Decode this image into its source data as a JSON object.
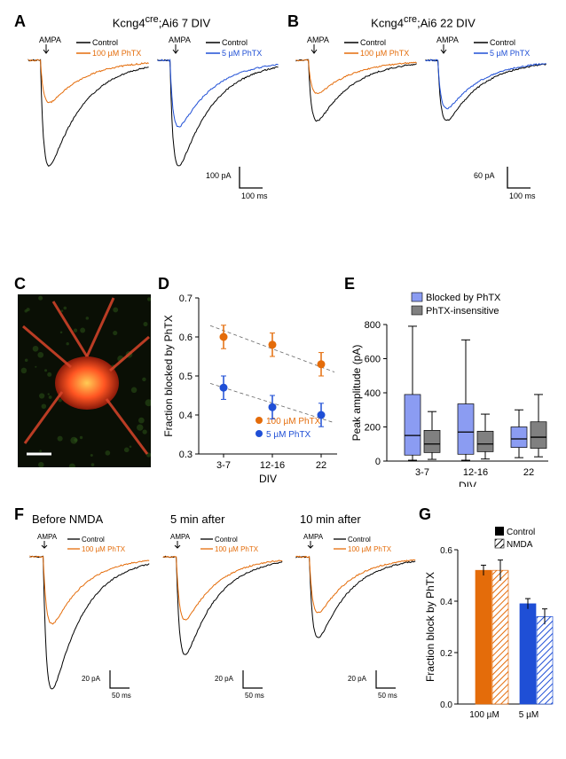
{
  "panels": {
    "A": {
      "label": "A",
      "title_html": "Kcng4<sup>cre</sup>;Ai6 7 DIV"
    },
    "B": {
      "label": "B",
      "title_html": "Kcng4<sup>cre</sup>;Ai6 22 DIV"
    },
    "C": {
      "label": "C"
    },
    "D": {
      "label": "D"
    },
    "E": {
      "label": "E"
    },
    "F": {
      "label": "F"
    },
    "G": {
      "label": "G"
    }
  },
  "colors": {
    "control": "#000000",
    "phtx100": "#e46c0a",
    "phtx5": "#1f4fd6",
    "boxBlocked": "#8b9cf2",
    "boxInsens": "#808080",
    "barNMDA_hatch": "#e46c0a",
    "barNMDA_hatch2": "#1f4fd6",
    "background": "#ffffff"
  },
  "traces": {
    "A1": {
      "arrow_label": "AMPA",
      "legend": [
        [
          "Control",
          "#000000"
        ],
        [
          "100 µM PhTX",
          "#e46c0a"
        ]
      ],
      "control_peak_pA": -350,
      "phtx_peak_pA": -140,
      "control_color": "#000000",
      "phtx_color": "#e46c0a"
    },
    "A2": {
      "arrow_label": "AMPA",
      "legend": [
        [
          "Control",
          "#000000"
        ],
        [
          "5 µM PhTX",
          "#1f4fd6"
        ]
      ],
      "control_peak_pA": -350,
      "phtx_peak_pA": -220,
      "control_color": "#000000",
      "phtx_color": "#1f4fd6",
      "scale": {
        "y_pA": 100,
        "x_ms": 100
      }
    },
    "B1": {
      "arrow_label": "AMPA",
      "legend": [
        [
          "Control",
          "#000000"
        ],
        [
          "100 µM PhTX",
          "#e46c0a"
        ]
      ],
      "control_peak_pA": -200,
      "phtx_peak_pA": -110,
      "control_color": "#000000",
      "phtx_color": "#e46c0a"
    },
    "B2": {
      "arrow_label": "AMPA",
      "legend": [
        [
          "Control",
          "#000000"
        ],
        [
          "5 µM PhTX",
          "#1f4fd6"
        ]
      ],
      "control_peak_pA": -200,
      "phtx_peak_pA": -160,
      "control_color": "#000000",
      "phtx_color": "#1f4fd6",
      "scale": {
        "y_pA": 60,
        "x_ms": 100
      }
    }
  },
  "panelD": {
    "ylabel": "Fraction blocked by PhTX",
    "xlabel": "DIV",
    "categories": [
      "3-7",
      "12-16",
      "22"
    ],
    "ylim": [
      0.3,
      0.7
    ],
    "yticks": [
      0.3,
      0.4,
      0.5,
      0.6,
      0.7
    ],
    "series": [
      {
        "label": "100 µM PhTX",
        "color": "#e46c0a",
        "marker": "circle",
        "values": [
          0.6,
          0.58,
          0.53
        ],
        "err": [
          0.03,
          0.03,
          0.03
        ]
      },
      {
        "label": "5 µM PhTX",
        "color": "#1f4fd6",
        "marker": "circle",
        "values": [
          0.47,
          0.42,
          0.4
        ],
        "err": [
          0.03,
          0.03,
          0.03
        ]
      }
    ],
    "dash_lines": true
  },
  "panelE": {
    "ylabel": "Peak amplitude (pA)",
    "xlabel": "DIV",
    "categories": [
      "3-7",
      "12-16",
      "22"
    ],
    "ylim": [
      0,
      800
    ],
    "yticks": [
      0,
      200,
      400,
      600,
      800
    ],
    "legend": [
      [
        "Blocked by PhTX",
        "#8b9cf2"
      ],
      [
        "PhTX-insensitive",
        "#808080"
      ]
    ],
    "groups": {
      "3-7": {
        "blocked": {
          "q1": 35,
          "med": 150,
          "q3": 390,
          "wlo": 5,
          "whi": 790
        },
        "insens": {
          "q1": 50,
          "med": 100,
          "q3": 180,
          "wlo": 10,
          "whi": 290
        }
      },
      "12-16": {
        "blocked": {
          "q1": 40,
          "med": 170,
          "q3": 335,
          "wlo": 5,
          "whi": 710
        },
        "insens": {
          "q1": 55,
          "med": 100,
          "q3": 175,
          "wlo": 12,
          "whi": 275
        }
      },
      "22": {
        "blocked": {
          "q1": 80,
          "med": 130,
          "q3": 200,
          "wlo": 20,
          "whi": 300
        },
        "insens": {
          "q1": 75,
          "med": 140,
          "q3": 230,
          "wlo": 25,
          "whi": 390
        }
      }
    }
  },
  "panelF": {
    "titles": [
      "Before NMDA",
      "5 min after",
      "10 min after"
    ],
    "arrow_label": "AMPA",
    "legend": [
      [
        "Control",
        "#000000"
      ],
      [
        "100 µM PhTX",
        "#e46c0a"
      ]
    ],
    "scale": {
      "y_pA": 20,
      "x_ms": 50
    },
    "sub": [
      {
        "control_peak_pA": -95,
        "phtx_peak_pA": -48
      },
      {
        "control_peak_pA": -70,
        "phtx_peak_pA": -45
      },
      {
        "control_peak_pA": -58,
        "phtx_peak_pA": -40
      }
    ],
    "colors": {
      "control": "#000000",
      "phtx": "#e46c0a"
    }
  },
  "panelG": {
    "ylabel": "Fraction block by PhTX",
    "ylim": [
      0,
      0.6
    ],
    "yticks": [
      0,
      0.2,
      0.4,
      0.6
    ],
    "categories": [
      "100 µM",
      "5 µM"
    ],
    "legend": [
      [
        "Control",
        "solid"
      ],
      [
        "NMDA",
        "hatch"
      ]
    ],
    "bars": [
      {
        "cat": "100 µM",
        "cond": "Control",
        "value": 0.52,
        "err": 0.02,
        "color": "#e46c0a",
        "hatch": false
      },
      {
        "cat": "100 µM",
        "cond": "NMDA",
        "value": 0.52,
        "err": 0.04,
        "color": "#e46c0a",
        "hatch": true
      },
      {
        "cat": "5 µM",
        "cond": "Control",
        "value": 0.39,
        "err": 0.02,
        "color": "#1f4fd6",
        "hatch": false
      },
      {
        "cat": "5 µM",
        "cond": "NMDA",
        "value": 0.34,
        "err": 0.03,
        "color": "#1f4fd6",
        "hatch": true
      }
    ]
  },
  "panelC": {
    "scalebar_um": 10
  },
  "fonts": {
    "panel_label_pt": 18,
    "axis_label_pt": 12,
    "tick_pt": 11,
    "legend_pt": 11
  }
}
